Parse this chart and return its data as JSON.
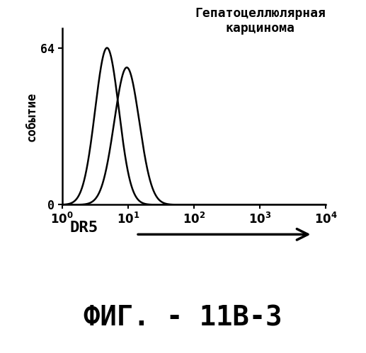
{
  "title_line1": "Гепатоцеллюлярная",
  "title_line2": "карцинома",
  "ylabel": "событие",
  "xlabel_text": "DR5",
  "yticks": [
    0,
    64
  ],
  "ylim": [
    0,
    72
  ],
  "xlim_log": [
    1,
    10000
  ],
  "curve1_mean_log": 0.68,
  "curve1_std_log": 0.18,
  "curve1_peak": 64,
  "curve2_mean_log": 0.98,
  "curve2_std_log": 0.19,
  "curve2_peak": 56,
  "curve_color": "#000000",
  "background_color": "#ffffff",
  "fig_label": "ФИГ. - 11В-3",
  "title_fontsize": 13,
  "ylabel_fontsize": 12,
  "axis_tick_fontsize": 12,
  "fig_label_fontsize": 28,
  "xlabel_fontsize": 16
}
